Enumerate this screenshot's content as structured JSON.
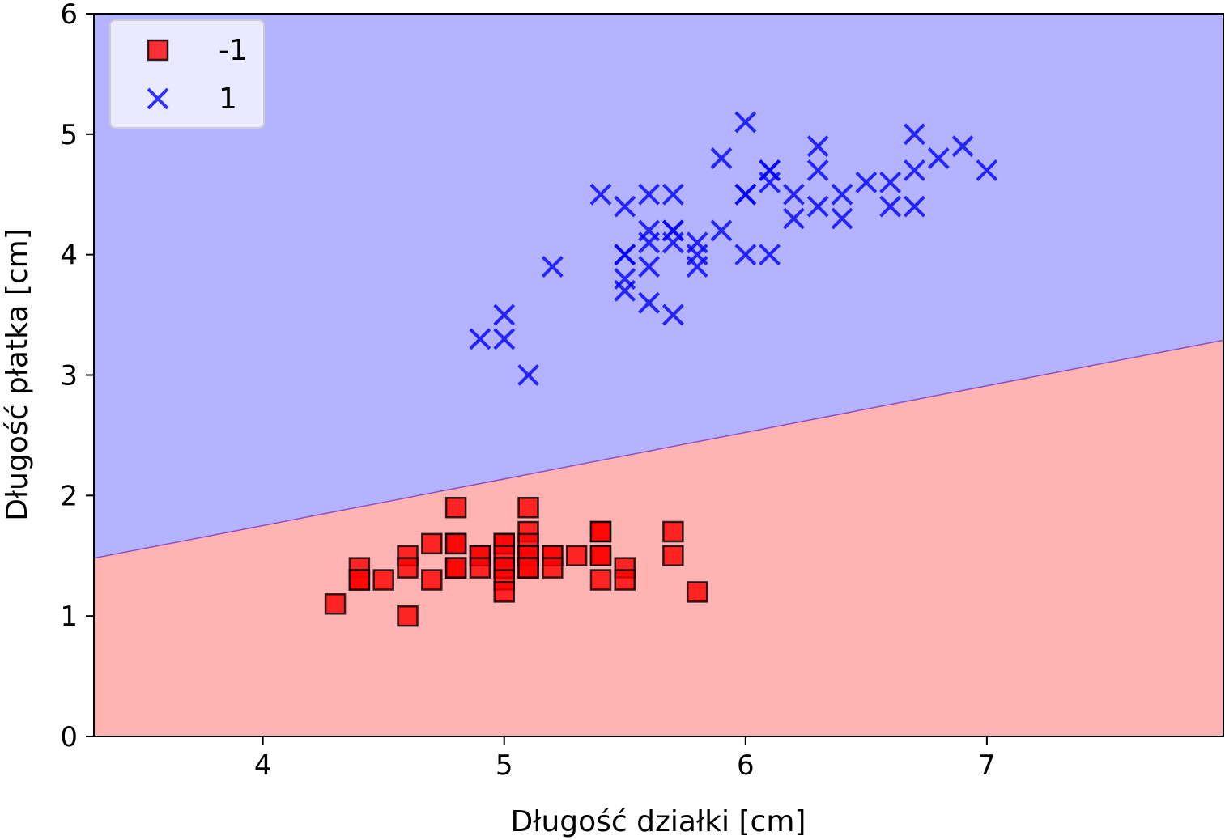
{
  "chart_data": {
    "type": "scatter",
    "title": "",
    "xlabel": "Długość działki [cm]",
    "ylabel": "Długość płatka [cm]",
    "xlim": [
      3.3,
      7.98
    ],
    "ylim": [
      0,
      6
    ],
    "xticks": [
      4,
      5,
      6,
      7
    ],
    "yticks": [
      0,
      1,
      2,
      3,
      4,
      5,
      6
    ],
    "grid": false,
    "legend_position": "top-left",
    "decision_regions": {
      "boundary_line": {
        "x": [
          3.3,
          7.98
        ],
        "y": [
          1.48,
          3.29
        ]
      },
      "below_class": "-1",
      "above_class": "1",
      "below_color": "#ffb3b3",
      "above_color": "#b3b3ff",
      "boundary_color": "#8c4fc9"
    },
    "series": [
      {
        "name": "-1",
        "marker": "square",
        "color": "#ff0000",
        "points": [
          [
            4.3,
            1.1
          ],
          [
            4.4,
            1.4
          ],
          [
            4.4,
            1.3
          ],
          [
            4.4,
            1.3
          ],
          [
            4.5,
            1.3
          ],
          [
            4.6,
            1.5
          ],
          [
            4.6,
            1.4
          ],
          [
            4.6,
            1.0
          ],
          [
            4.7,
            1.6
          ],
          [
            4.7,
            1.3
          ],
          [
            4.8,
            1.9
          ],
          [
            4.8,
            1.6
          ],
          [
            4.8,
            1.6
          ],
          [
            4.8,
            1.4
          ],
          [
            4.8,
            1.4
          ],
          [
            4.9,
            1.5
          ],
          [
            4.9,
            1.5
          ],
          [
            4.9,
            1.4
          ],
          [
            5.0,
            1.6
          ],
          [
            5.0,
            1.6
          ],
          [
            5.0,
            1.5
          ],
          [
            5.0,
            1.4
          ],
          [
            5.0,
            1.4
          ],
          [
            5.0,
            1.3
          ],
          [
            5.0,
            1.2
          ],
          [
            5.1,
            1.9
          ],
          [
            5.1,
            1.7
          ],
          [
            5.1,
            1.6
          ],
          [
            5.1,
            1.5
          ],
          [
            5.1,
            1.5
          ],
          [
            5.1,
            1.4
          ],
          [
            5.1,
            1.4
          ],
          [
            5.2,
            1.5
          ],
          [
            5.2,
            1.5
          ],
          [
            5.2,
            1.4
          ],
          [
            5.3,
            1.5
          ],
          [
            5.4,
            1.7
          ],
          [
            5.4,
            1.7
          ],
          [
            5.4,
            1.5
          ],
          [
            5.4,
            1.5
          ],
          [
            5.4,
            1.3
          ],
          [
            5.5,
            1.4
          ],
          [
            5.5,
            1.3
          ],
          [
            5.7,
            1.7
          ],
          [
            5.7,
            1.5
          ],
          [
            5.8,
            1.2
          ]
        ]
      },
      {
        "name": "1",
        "marker": "x",
        "color": "#0000ff",
        "points": [
          [
            4.9,
            3.3
          ],
          [
            5.0,
            3.5
          ],
          [
            5.0,
            3.3
          ],
          [
            5.1,
            3.0
          ],
          [
            5.2,
            3.9
          ],
          [
            5.4,
            4.5
          ],
          [
            5.5,
            4.4
          ],
          [
            5.5,
            4.0
          ],
          [
            5.5,
            4.0
          ],
          [
            5.5,
            3.8
          ],
          [
            5.5,
            3.7
          ],
          [
            5.6,
            4.5
          ],
          [
            5.6,
            4.2
          ],
          [
            5.6,
            4.1
          ],
          [
            5.6,
            3.9
          ],
          [
            5.6,
            3.6
          ],
          [
            5.7,
            4.5
          ],
          [
            5.7,
            4.2
          ],
          [
            5.7,
            4.2
          ],
          [
            5.7,
            4.1
          ],
          [
            5.7,
            3.5
          ],
          [
            5.8,
            4.1
          ],
          [
            5.8,
            4.0
          ],
          [
            5.8,
            3.9
          ],
          [
            5.9,
            4.8
          ],
          [
            5.9,
            4.2
          ],
          [
            6.0,
            5.1
          ],
          [
            6.0,
            4.5
          ],
          [
            6.0,
            4.5
          ],
          [
            6.0,
            4.0
          ],
          [
            6.1,
            4.7
          ],
          [
            6.1,
            4.7
          ],
          [
            6.1,
            4.6
          ],
          [
            6.1,
            4.0
          ],
          [
            6.2,
            4.5
          ],
          [
            6.2,
            4.3
          ],
          [
            6.3,
            4.9
          ],
          [
            6.3,
            4.7
          ],
          [
            6.3,
            4.4
          ],
          [
            6.4,
            4.5
          ],
          [
            6.4,
            4.3
          ],
          [
            6.5,
            4.6
          ],
          [
            6.6,
            4.6
          ],
          [
            6.6,
            4.4
          ],
          [
            6.7,
            5.0
          ],
          [
            6.7,
            4.7
          ],
          [
            6.7,
            4.4
          ],
          [
            6.8,
            4.8
          ],
          [
            6.9,
            4.9
          ],
          [
            7.0,
            4.7
          ]
        ]
      }
    ]
  }
}
